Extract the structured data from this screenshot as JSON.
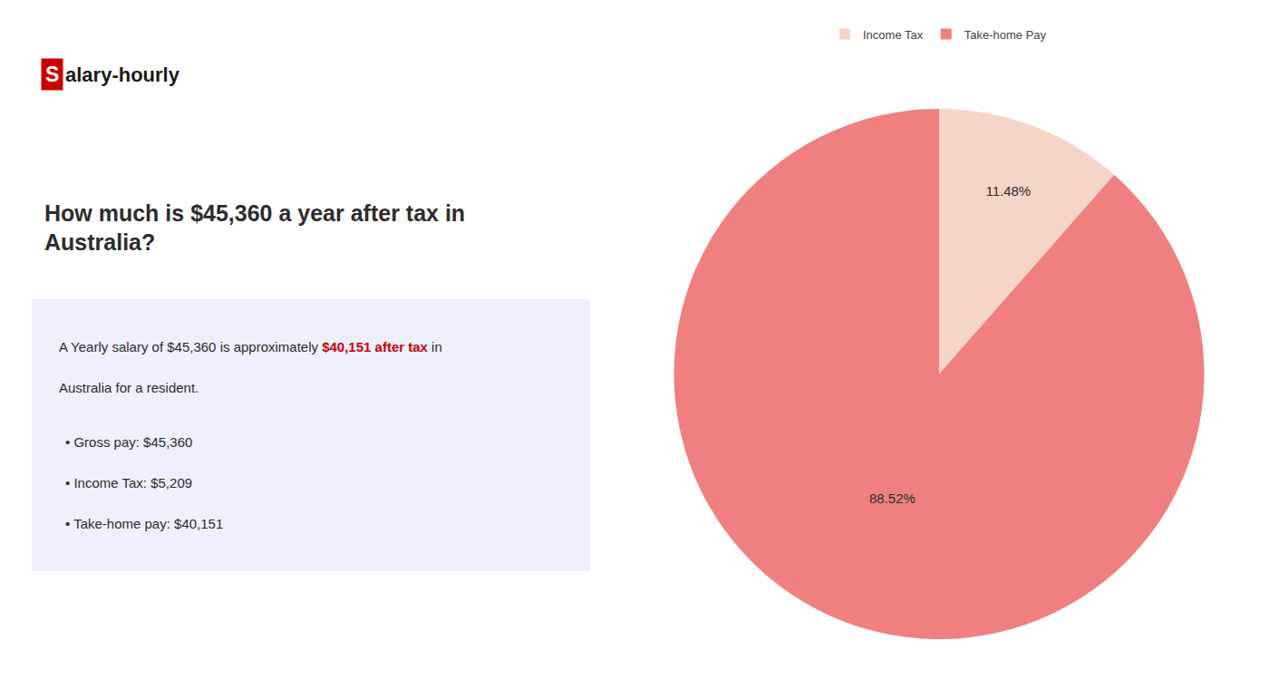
{
  "chart_data": {
    "type": "pie",
    "title": [
      "How much is $45,360 a year after tax in",
      "Australia?"
    ],
    "categories": [
      "Income Tax",
      "Take-home Pay"
    ],
    "values": [
      11.48,
      88.52
    ],
    "value_labels": [
      "11.48%",
      "88.52%"
    ],
    "colors": [
      "#f5d5c8",
      "#f08080"
    ],
    "data_labels": true,
    "legend": "top",
    "annotations": [
      {
        "text": "S",
        "color": "#cc0000"
      },
      {
        "text": "alary-hourly"
      },
      {
        "text": "A Yearly salary of $45,360 is approximately "
      },
      {
        "text": "$40,151 after tax",
        "color": "#cc0000"
      },
      {
        "text": " in"
      },
      {
        "text": "Australia for a resident."
      },
      {
        "text": "• Gross pay: $45,360"
      },
      {
        "text": "• Income Tax: $5,209"
      },
      {
        "text": "• Take-home pay: $40,151"
      }
    ]
  }
}
